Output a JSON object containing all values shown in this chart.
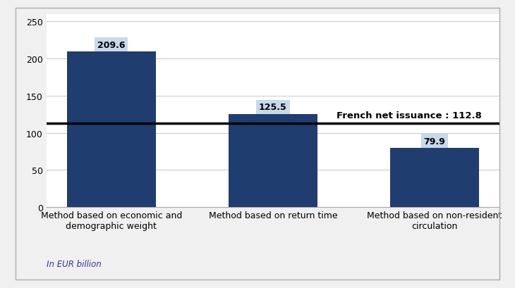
{
  "categories": [
    "Method based on economic and\ndemographic weight",
    "Method based on return time",
    "Method based on non-resident\ncirculation"
  ],
  "values": [
    209.6,
    125.5,
    79.9
  ],
  "bar_color": "#1f3d6e",
  "bar_label_bg": "#c8d9ea",
  "reference_line_value": 112.8,
  "reference_label": "French net issuance : 112.8",
  "ylim": [
    0,
    260
  ],
  "yticks": [
    0,
    50,
    100,
    150,
    200,
    250
  ],
  "footnote": "In EUR billion",
  "figure_bg": "#ffffff",
  "outer_box_bg": "#ffffff",
  "inner_bg": "#ffffff",
  "grid_color": "#cccccc",
  "bar_width": 0.55,
  "label_fontsize": 9,
  "tick_fontsize": 9,
  "footnote_fontsize": 8.5,
  "ref_label_fontsize": 9.5
}
